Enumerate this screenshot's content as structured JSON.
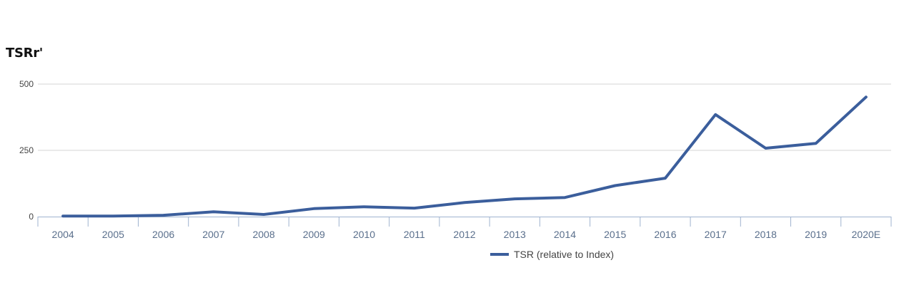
{
  "chart_data": {
    "type": "line",
    "title": "TSRr'",
    "xlabel": "",
    "ylabel": "",
    "categories": [
      "2004",
      "2005",
      "2006",
      "2007",
      "2008",
      "2009",
      "2010",
      "2011",
      "2012",
      "2013",
      "2014",
      "2015",
      "2016",
      "2017",
      "2018",
      "2019",
      "2020E"
    ],
    "series": [
      {
        "name": "TSR (relative to Index)",
        "values": [
          2,
          2,
          5,
          18,
          8,
          30,
          37,
          32,
          53,
          67,
          72,
          117,
          145,
          385,
          258,
          276,
          451
        ],
        "color": "#3b5e9c"
      }
    ],
    "ylim": [
      0,
      500
    ],
    "yticks": [
      0,
      250,
      500
    ],
    "grid": true,
    "legend_position": "bottom-center"
  }
}
